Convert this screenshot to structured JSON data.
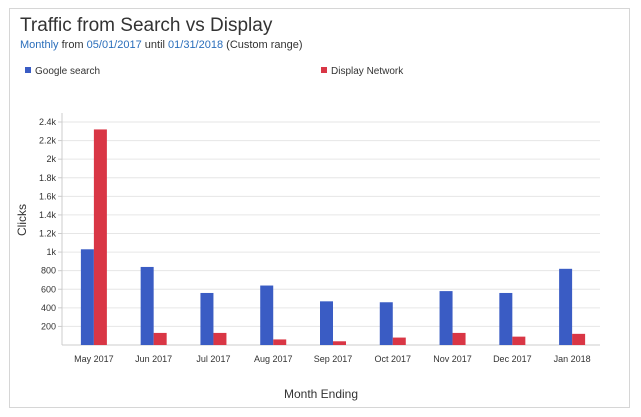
{
  "header": {
    "title": "Traffic from Search vs Display",
    "subtitle": {
      "period": "Monthly",
      "from_text": "from",
      "start_date": "05/01/2017",
      "until_text": "until",
      "end_date": "01/31/2018",
      "range_label": "(Custom range)"
    }
  },
  "chart_data": {
    "type": "bar",
    "title": "Traffic from Search vs Display",
    "xlabel": "Month Ending",
    "ylabel": "Clicks",
    "ylim": [
      0,
      2400
    ],
    "yticks": [
      200,
      400,
      600,
      800,
      1000,
      1200,
      1400,
      1600,
      1800,
      2000,
      2200,
      2400
    ],
    "ytick_labels": [
      "200",
      "400",
      "600",
      "800",
      "1k",
      "1.2k",
      "1.4k",
      "1.6k",
      "1.8k",
      "2k",
      "2.2k",
      "2.4k"
    ],
    "grid": true,
    "legend_position": "top",
    "categories": [
      "May 2017",
      "Jun 2017",
      "Jul 2017",
      "Aug 2017",
      "Sep 2017",
      "Oct 2017",
      "Nov 2017",
      "Dec 2017",
      "Jan 2018"
    ],
    "series": [
      {
        "name": "Google search",
        "color": "#3a5cc4",
        "values": [
          1030,
          840,
          560,
          640,
          470,
          460,
          580,
          560,
          820
        ]
      },
      {
        "name": "Display Network",
        "color": "#d93645",
        "values": [
          2320,
          130,
          130,
          60,
          40,
          80,
          130,
          90,
          120
        ]
      }
    ]
  }
}
